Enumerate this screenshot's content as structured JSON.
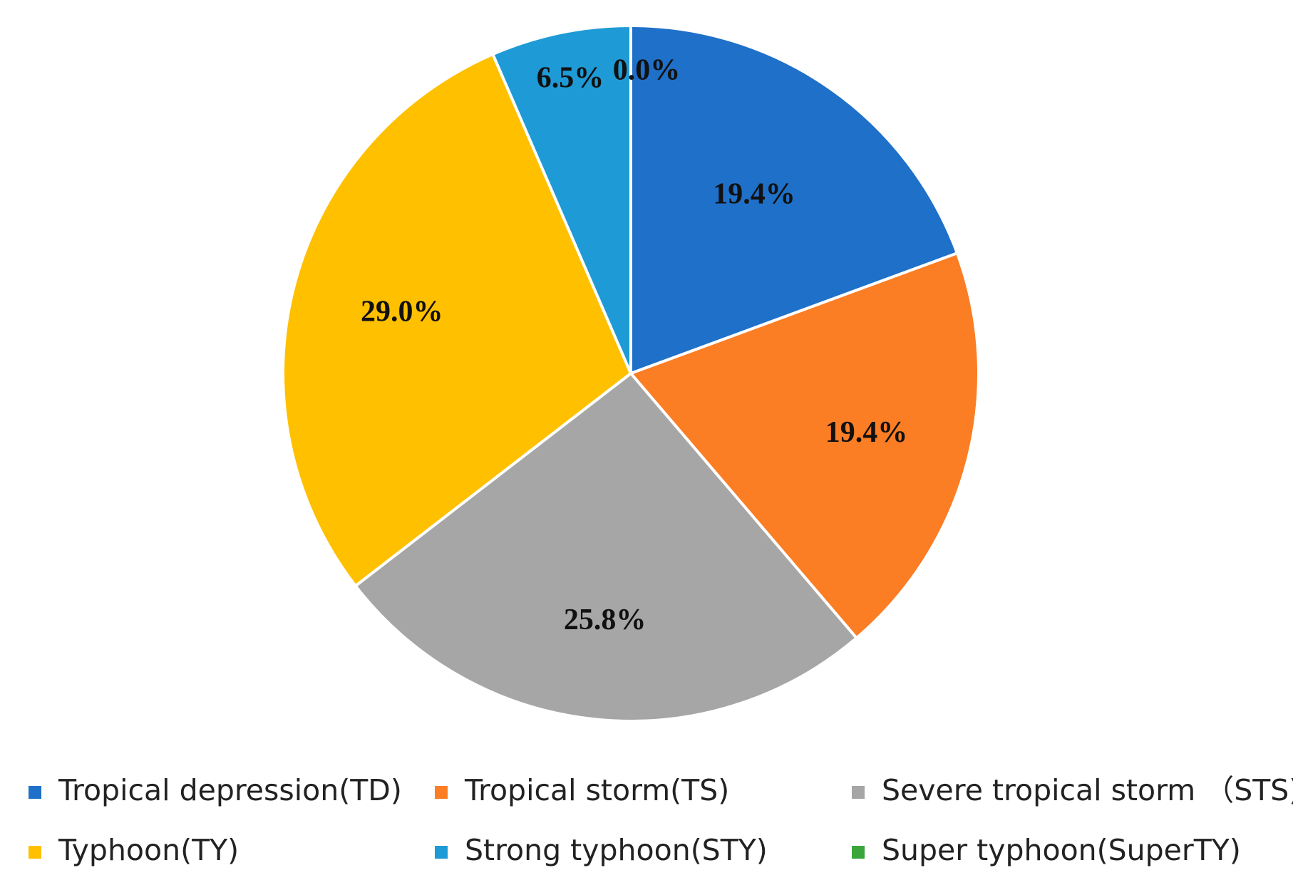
{
  "chart_data": {
    "type": "pie",
    "start_angle": "top, clockwise",
    "categories": [
      "Tropical depression(TD)",
      "Tropical storm(TS)",
      "Severe tropical storm （STS)",
      "Typhoon(TY)",
      "Strong typhoon(STY)",
      "Super typhoon(SuperTY)"
    ],
    "values": [
      19.4,
      19.4,
      25.8,
      29.0,
      6.5,
      0.0
    ],
    "data_labels": [
      "19.4%",
      "19.4%",
      "25.8%",
      "29.0%",
      "6.5%",
      "0.0%"
    ],
    "colors": [
      "#1f70c8",
      "#fb7d24",
      "#a6a6a6",
      "#ffc000",
      "#1e9ad6",
      "#3aa63a"
    ],
    "legend_placement": "bottom",
    "title": ""
  }
}
